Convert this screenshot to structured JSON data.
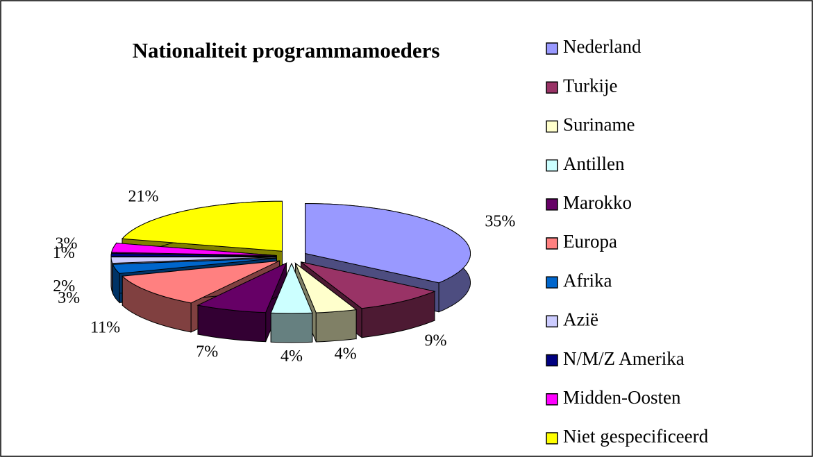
{
  "chart_data": {
    "type": "pie",
    "title": "Nationaliteit programmamoeders",
    "categories": [
      "Nederland",
      "Turkije",
      "Suriname",
      "Antillen",
      "Marokko",
      "Europa",
      "Afrika",
      "Azië",
      "N/M/Z Amerika",
      "Midden-Oosten",
      "Niet gespecificeerd"
    ],
    "values": [
      35,
      9,
      4,
      4,
      7,
      11,
      3,
      2,
      1,
      3,
      21
    ],
    "value_labels": [
      "35%",
      "9%",
      "4%",
      "4%",
      "7%",
      "11%",
      "3%",
      "2%",
      "1%",
      "3%",
      "21%"
    ],
    "colors": [
      "#9999ff",
      "#993366",
      "#ffffcc",
      "#ccffff",
      "#660066",
      "#ff8080",
      "#0066cc",
      "#ccccff",
      "#000080",
      "#ff00ff",
      "#ffff00"
    ],
    "legend": "right"
  }
}
